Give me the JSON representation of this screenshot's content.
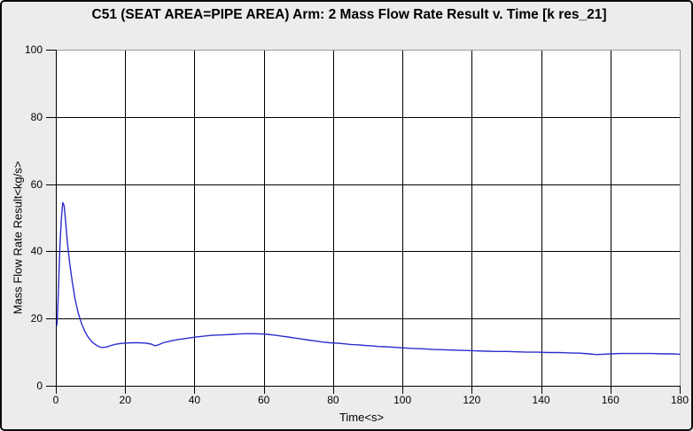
{
  "window": {
    "title": "C51 (SEAT AREA=PIPE AREA) Arm: 2 Mass Flow Rate Result v. Time [k res_21]"
  },
  "colors": {
    "window_background": "#ececec",
    "window_border": "#0a0a0a",
    "plot_background": "#ffffff",
    "grid": "#000000",
    "axis": "#000000",
    "frame_top_right": "#9a9a9a",
    "line": "#2d2dcc",
    "text": "#000000"
  },
  "chart_data": {
    "type": "line",
    "title": "C51 (SEAT AREA=PIPE AREA) Arm: 2 Mass Flow Rate Result v. Time [k res_21]",
    "xlabel": "Time<s>",
    "ylabel": "Mass Flow Rate Result<kg/s>",
    "xlim": [
      0,
      180
    ],
    "ylim": [
      0,
      100
    ],
    "x_ticks": [
      0,
      20,
      40,
      60,
      80,
      100,
      120,
      140,
      160,
      180
    ],
    "y_ticks": [
      0,
      20,
      40,
      60,
      80,
      100
    ],
    "grid": true,
    "legend": false,
    "series": [
      {
        "name": "Mass Flow Rate Result",
        "color": "#2d2dcc",
        "points": [
          [
            0.3,
            18
          ],
          [
            0.5,
            22
          ],
          [
            0.8,
            30
          ],
          [
            1.2,
            42
          ],
          [
            1.6,
            50
          ],
          [
            2,
            54.5
          ],
          [
            2.4,
            53.5
          ],
          [
            2.8,
            49
          ],
          [
            3.3,
            43
          ],
          [
            4,
            36.5
          ],
          [
            4.8,
            30.5
          ],
          [
            5.6,
            25.5
          ],
          [
            6.5,
            21.5
          ],
          [
            7.5,
            18.3
          ],
          [
            8.5,
            15.9
          ],
          [
            9.5,
            14.2
          ],
          [
            10.5,
            13
          ],
          [
            11.5,
            12.2
          ],
          [
            12.5,
            11.6
          ],
          [
            13.5,
            11.4
          ],
          [
            14.5,
            11.5
          ],
          [
            16,
            12
          ],
          [
            17.5,
            12.4
          ],
          [
            19,
            12.6
          ],
          [
            20,
            12.7
          ],
          [
            22,
            12.8
          ],
          [
            24,
            12.8
          ],
          [
            26,
            12.7
          ],
          [
            27.5,
            12.4
          ],
          [
            28.6,
            11.9
          ],
          [
            29.4,
            12.1
          ],
          [
            31,
            12.8
          ],
          [
            33,
            13.3
          ],
          [
            35,
            13.7
          ],
          [
            37,
            14
          ],
          [
            39,
            14.3
          ],
          [
            41,
            14.6
          ],
          [
            43,
            14.8
          ],
          [
            45,
            15
          ],
          [
            47,
            15.1
          ],
          [
            49,
            15.2
          ],
          [
            51,
            15.3
          ],
          [
            53,
            15.4
          ],
          [
            55,
            15.5
          ],
          [
            57,
            15.5
          ],
          [
            59,
            15.4
          ],
          [
            61,
            15.3
          ],
          [
            63,
            15.1
          ],
          [
            65,
            14.8
          ],
          [
            67,
            14.5
          ],
          [
            69,
            14.2
          ],
          [
            71,
            13.9
          ],
          [
            73,
            13.6
          ],
          [
            75,
            13.3
          ],
          [
            77,
            13
          ],
          [
            79,
            12.8
          ],
          [
            81,
            12.7
          ],
          [
            83,
            12.5
          ],
          [
            85,
            12.3
          ],
          [
            87,
            12.2
          ],
          [
            89,
            12
          ],
          [
            91,
            11.9
          ],
          [
            93,
            11.7
          ],
          [
            95,
            11.6
          ],
          [
            97,
            11.5
          ],
          [
            100,
            11.3
          ],
          [
            103,
            11.1
          ],
          [
            106,
            11
          ],
          [
            109,
            10.8
          ],
          [
            112,
            10.7
          ],
          [
            115,
            10.6
          ],
          [
            118,
            10.5
          ],
          [
            121,
            10.4
          ],
          [
            124,
            10.3
          ],
          [
            127,
            10.2
          ],
          [
            130,
            10.2
          ],
          [
            133,
            10.1
          ],
          [
            136,
            10
          ],
          [
            139,
            10
          ],
          [
            142,
            9.9
          ],
          [
            145,
            9.9
          ],
          [
            148,
            9.8
          ],
          [
            151,
            9.7
          ],
          [
            154,
            9.5
          ],
          [
            156,
            9.3
          ],
          [
            158,
            9.4
          ],
          [
            160,
            9.5
          ],
          [
            163,
            9.6
          ],
          [
            166,
            9.6
          ],
          [
            169,
            9.6
          ],
          [
            172,
            9.6
          ],
          [
            175,
            9.5
          ],
          [
            178,
            9.5
          ],
          [
            180,
            9.4
          ]
        ]
      }
    ]
  }
}
